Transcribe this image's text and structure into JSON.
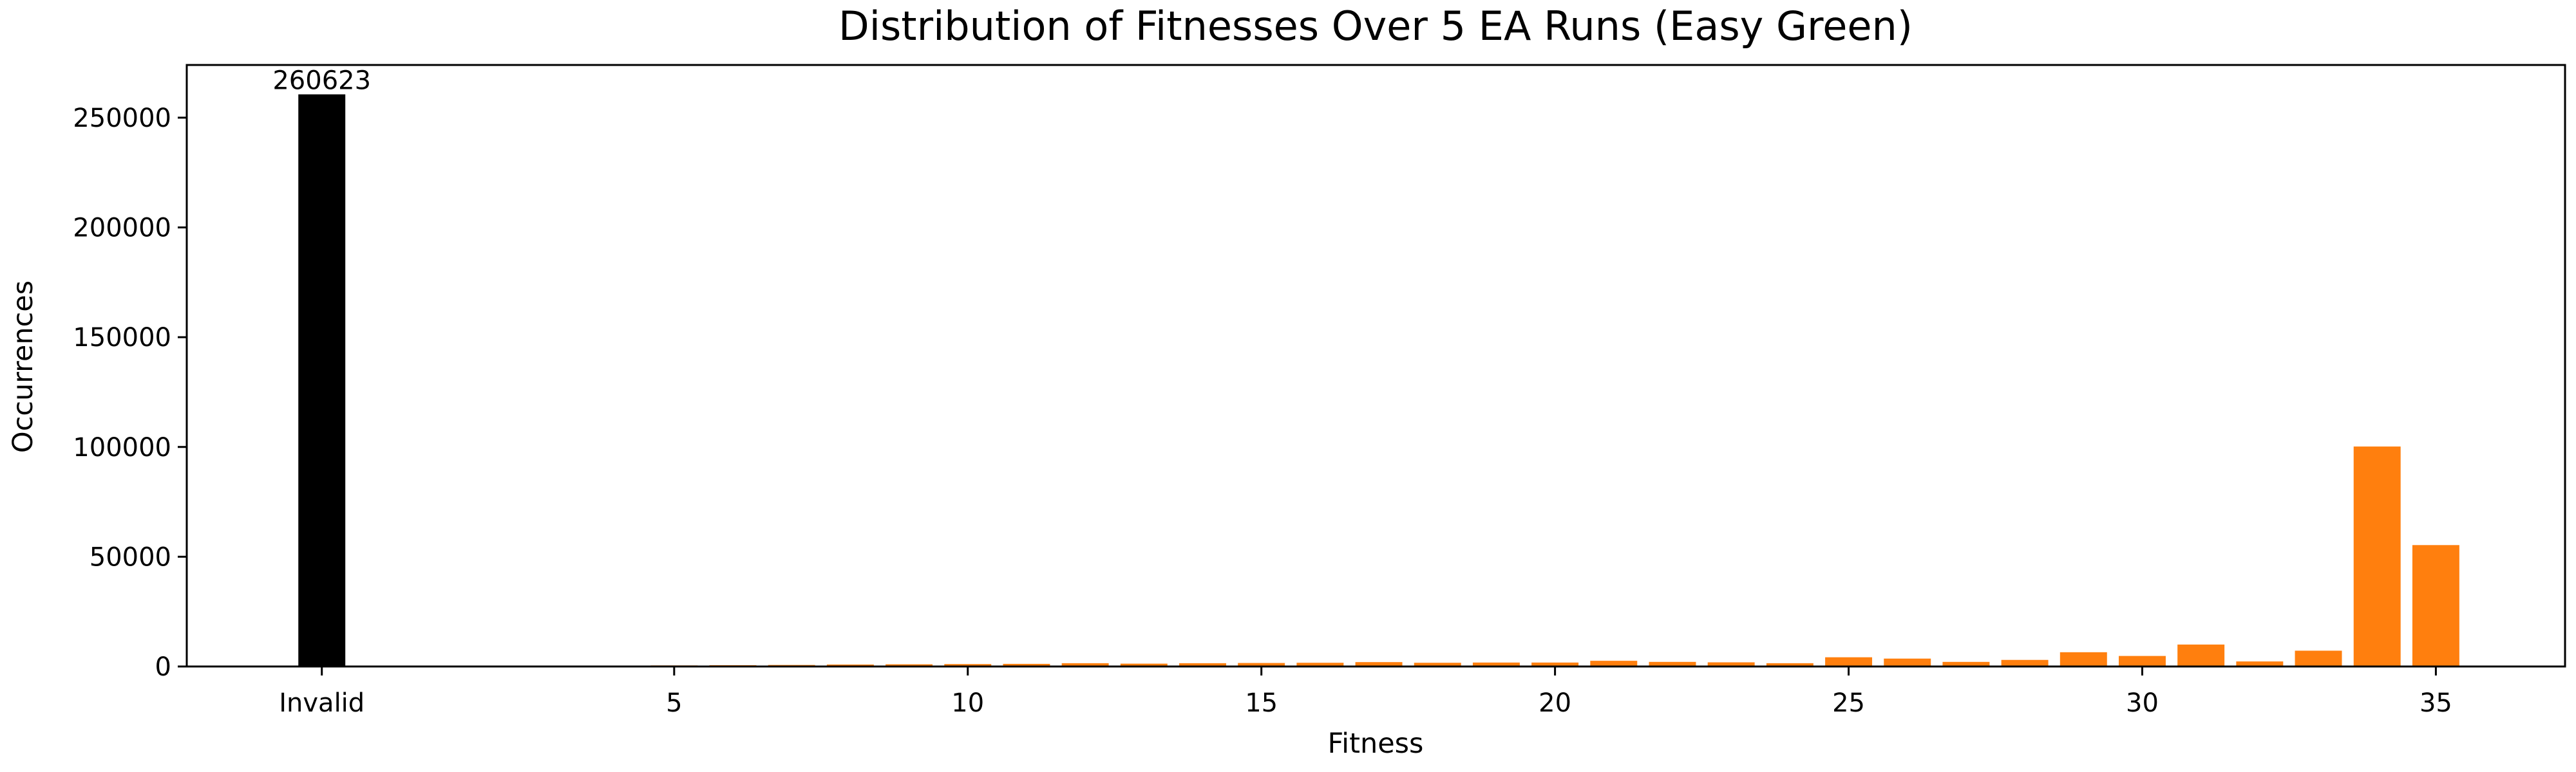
{
  "chart_data": {
    "type": "bar",
    "title": "Distribution of Fitnesses Over 5 EA Runs (Easy Green)",
    "xlabel": "Fitness",
    "ylabel": "Occurrences",
    "ylim": [
      0,
      274000
    ],
    "xlim": [
      -2.3,
      38.2
    ],
    "yticks": [
      0,
      50000,
      100000,
      150000,
      200000,
      250000
    ],
    "xtick_positions": [
      0,
      6,
      11,
      16,
      21,
      26,
      31,
      36
    ],
    "xtick_labels": [
      "Invalid",
      "5",
      "10",
      "15",
      "20",
      "25",
      "30",
      "35"
    ],
    "grid": false,
    "colors": {
      "invalid": "#000000",
      "valid": "#ff7f0e"
    },
    "invalid_bar": {
      "category": "Invalid",
      "value": 260623,
      "label": "260623"
    },
    "fitness_bars": [
      {
        "fitness": 4,
        "value": 300
      },
      {
        "fitness": 5,
        "value": 500
      },
      {
        "fitness": 6,
        "value": 600
      },
      {
        "fitness": 7,
        "value": 700
      },
      {
        "fitness": 8,
        "value": 900
      },
      {
        "fitness": 9,
        "value": 1000
      },
      {
        "fitness": 10,
        "value": 1100
      },
      {
        "fitness": 11,
        "value": 1200
      },
      {
        "fitness": 12,
        "value": 1500
      },
      {
        "fitness": 13,
        "value": 1300
      },
      {
        "fitness": 14,
        "value": 1500
      },
      {
        "fitness": 15,
        "value": 1600
      },
      {
        "fitness": 16,
        "value": 1700
      },
      {
        "fitness": 17,
        "value": 2000
      },
      {
        "fitness": 18,
        "value": 1700
      },
      {
        "fitness": 19,
        "value": 1800
      },
      {
        "fitness": 20,
        "value": 1800
      },
      {
        "fitness": 21,
        "value": 2600
      },
      {
        "fitness": 22,
        "value": 2100
      },
      {
        "fitness": 23,
        "value": 1900
      },
      {
        "fitness": 24,
        "value": 1500
      },
      {
        "fitness": 25,
        "value": 4200
      },
      {
        "fitness": 26,
        "value": 3600
      },
      {
        "fitness": 27,
        "value": 2100
      },
      {
        "fitness": 28,
        "value": 3000
      },
      {
        "fitness": 29,
        "value": 6500
      },
      {
        "fitness": 30,
        "value": 4800
      },
      {
        "fitness": 31,
        "value": 10000
      },
      {
        "fitness": 32,
        "value": 2300
      },
      {
        "fitness": 33,
        "value": 7200
      },
      {
        "fitness": 34,
        "value": 100200
      },
      {
        "fitness": 35,
        "value": 55300
      }
    ]
  }
}
